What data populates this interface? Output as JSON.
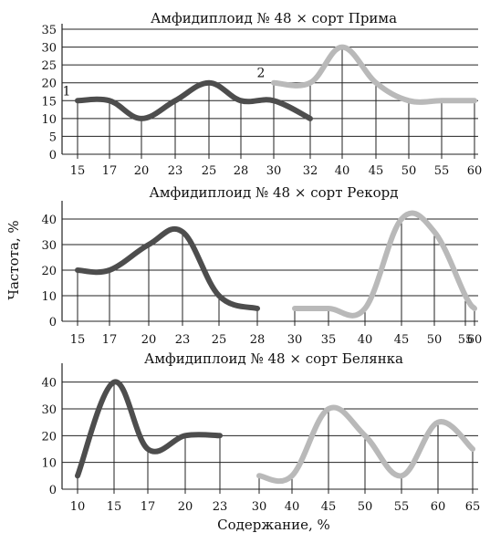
{
  "ylabel": "Частота, %",
  "xlabel": "Содержание, %",
  "colors": {
    "series_1": "#4d4d4d",
    "series_2": "#b9b9b9",
    "grid": "#222222",
    "text": "#111111"
  },
  "chart_data": [
    {
      "type": "line",
      "title": "Амфидиплоид № 48 × сорт Прима",
      "categories": [
        "15",
        "17",
        "20",
        "23",
        "25",
        "28",
        "30",
        "32",
        "40",
        "45",
        "50",
        "55",
        "60"
      ],
      "ylim": [
        0,
        35
      ],
      "yticks": [
        "0",
        "5",
        "10",
        "15",
        "20",
        "25",
        "30",
        "35"
      ],
      "grid": true,
      "series": [
        {
          "name": "1",
          "color": "#4d4d4d",
          "values": [
            15,
            15,
            10,
            15,
            20,
            15,
            15,
            10,
            null,
            null,
            null,
            null,
            null
          ]
        },
        {
          "name": "2",
          "color": "#b9b9b9",
          "values": [
            null,
            null,
            null,
            null,
            null,
            null,
            20,
            20,
            30,
            20,
            15,
            15,
            15
          ]
        }
      ]
    },
    {
      "type": "line",
      "title": "Амфидиплоид № 48 × сорт Рекорд",
      "categories": [
        "15",
        "17",
        "20",
        "23",
        "25",
        "28",
        "30",
        "35",
        "40",
        "45",
        "50",
        "55",
        "60"
      ],
      "ylim": [
        0,
        45
      ],
      "yticks": [
        "0",
        "10",
        "20",
        "30",
        "40"
      ],
      "grid": true,
      "series": [
        {
          "color": "#4d4d4d",
          "values": [
            20,
            20,
            30,
            35,
            10,
            5,
            null,
            null,
            null,
            null,
            null,
            null,
            null
          ]
        },
        {
          "color": "#b9b9b9",
          "values": [
            null,
            null,
            null,
            null,
            null,
            null,
            5,
            5,
            5,
            40,
            35,
            10,
            5
          ]
        }
      ]
    },
    {
      "type": "line",
      "title": "Амфидиплоид № 48 × сорт Белянка",
      "categories": [
        "10",
        "15",
        "17",
        "20",
        "23",
        "30",
        "40",
        "45",
        "50",
        "55",
        "60",
        "65"
      ],
      "ylim": [
        0,
        45
      ],
      "yticks": [
        "0",
        "10",
        "20",
        "30",
        "40"
      ],
      "grid": true,
      "series": [
        {
          "color": "#4d4d4d",
          "values": [
            5,
            40,
            15,
            20,
            20,
            null,
            null,
            null,
            null,
            null,
            null,
            null
          ]
        },
        {
          "color": "#b9b9b9",
          "values": [
            null,
            null,
            null,
            null,
            null,
            5,
            5,
            30,
            20,
            5,
            25,
            15
          ]
        }
      ]
    }
  ]
}
